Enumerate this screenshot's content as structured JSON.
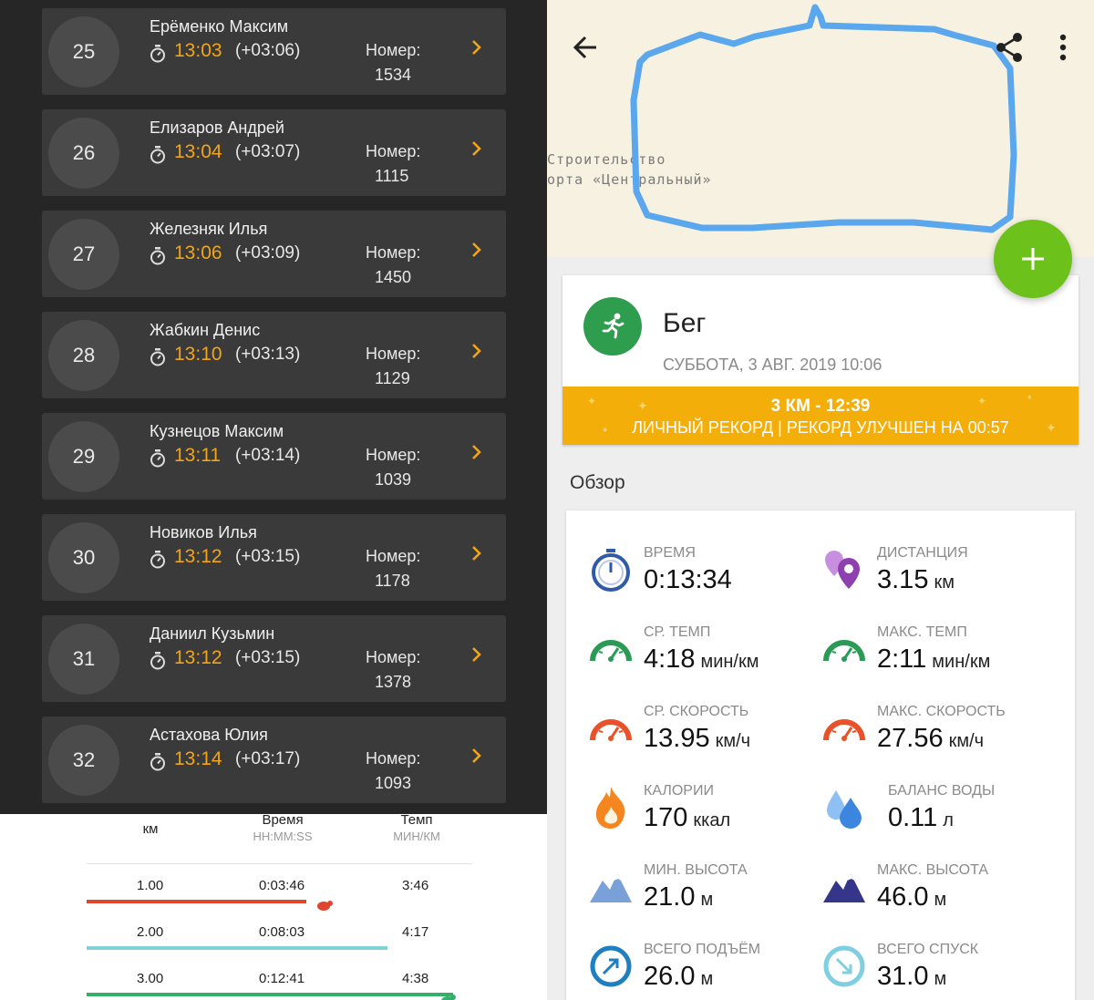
{
  "leaderboard": {
    "bib_label": "Номер:",
    "entries": [
      {
        "rank": "25",
        "name": "Ерёменко Максим",
        "time": "13:03",
        "diff": "(+03:06)",
        "bib": "1534"
      },
      {
        "rank": "26",
        "name": "Елизаров Андрей",
        "time": "13:04",
        "diff": "(+03:07)",
        "bib": "1115"
      },
      {
        "rank": "27",
        "name": "Железняк Илья",
        "time": "13:06",
        "diff": "(+03:09)",
        "bib": "1450"
      },
      {
        "rank": "28",
        "name": "Жабкин Денис",
        "time": "13:10",
        "diff": "(+03:13)",
        "bib": "1129"
      },
      {
        "rank": "29",
        "name": "Кузнецов Максим",
        "time": "13:11",
        "diff": "(+03:14)",
        "bib": "1039"
      },
      {
        "rank": "30",
        "name": "Новиков Илья",
        "time": "13:12",
        "diff": "(+03:15)",
        "bib": "1178"
      },
      {
        "rank": "31",
        "name": "Даниил Кузьмин",
        "time": "13:12",
        "diff": "(+03:15)",
        "bib": "1378"
      },
      {
        "rank": "32",
        "name": "Астахова Юлия",
        "time": "13:14",
        "diff": "(+03:17)",
        "bib": "1093"
      }
    ]
  },
  "splits": {
    "headers": {
      "km": "км",
      "time": "Время",
      "time_sub": "HH:MM:SS",
      "pace": "Темп",
      "pace_sub": "МИН/КМ"
    },
    "rows": [
      {
        "km": "1.00",
        "time": "0:03:46",
        "pace": "3:46",
        "bar_color": "#e0462e",
        "bar_fraction": 0.57
      },
      {
        "km": "2.00",
        "time": "0:08:03",
        "pace": "4:17",
        "bar_color": "#7fd3d8",
        "bar_fraction": 0.78
      },
      {
        "km": "3.00",
        "time": "0:12:41",
        "pace": "4:38",
        "bar_color": "#35b06a",
        "bar_fraction": 0.95
      }
    ]
  },
  "map": {
    "label_line1": "Строительство",
    "label_line2": "орта «Центральный»",
    "route_color": "#5aa7ee"
  },
  "activity": {
    "title": "Бег",
    "date": "СУББОТА, 3 АВГ. 2019 10:06",
    "record_main": "3 КМ  -  12:39",
    "record_sub": "ЛИЧНЫЙ РЕКОРД  |  РЕКОРД УЛУЧШЕН НА 00:57"
  },
  "overview": {
    "title": "Обзор",
    "stats": [
      {
        "label": "ВРЕМЯ",
        "value": "0:13:34",
        "unit": "",
        "icon": "stopwatch-icon",
        "color": "#2e5aa8"
      },
      {
        "label": "ДИСТАНЦИЯ",
        "value": "3.15",
        "unit": "км",
        "icon": "location-pins-icon",
        "color": "#8e3fb0"
      },
      {
        "label": "СР. ТЕМП",
        "value": "4:18",
        "unit": "мин/км",
        "icon": "gauge-icon",
        "color": "#2a9a55"
      },
      {
        "label": "МАКС. ТЕМП",
        "value": "2:11",
        "unit": "мин/км",
        "icon": "gauge-icon",
        "color": "#2a9a55"
      },
      {
        "label": "СР. СКОРОСТЬ",
        "value": "13.95",
        "unit": "км/ч",
        "icon": "speedometer-icon",
        "color": "#e8522a"
      },
      {
        "label": "МАКС. СКОРОСТЬ",
        "value": "27.56",
        "unit": "км/ч",
        "icon": "speedometer-icon",
        "color": "#e8522a"
      },
      {
        "label": "КАЛОРИИ",
        "value": "170",
        "unit": "ккал",
        "icon": "flame-icon",
        "color": "#f5861f"
      },
      {
        "label": "БАЛАНС ВОДЫ",
        "value": "0.11",
        "unit": "л",
        "icon": "water-drops-icon",
        "color": "#3d86e0"
      },
      {
        "label": "МИН. ВЫСОТА",
        "value": "21.0",
        "unit": "м",
        "icon": "mountain-icon",
        "color": "#7aa0d8"
      },
      {
        "label": "МАКС. ВЫСОТА",
        "value": "46.0",
        "unit": "м",
        "icon": "mountain-icon",
        "color": "#35358a"
      },
      {
        "label": "ВСЕГО ПОДЪЁМ",
        "value": "26.0",
        "unit": "м",
        "icon": "ascent-icon",
        "color": "#1f7fc0"
      },
      {
        "label": "ВСЕГО СПУСК",
        "value": "31.0",
        "unit": "м",
        "icon": "descent-icon",
        "color": "#7fcfe0"
      }
    ]
  }
}
